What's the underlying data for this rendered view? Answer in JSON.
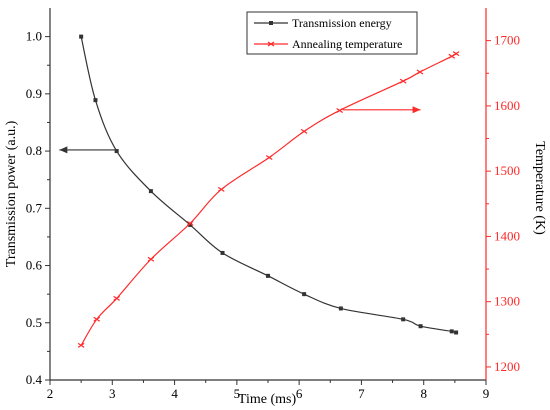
{
  "chart_data": {
    "type": "line",
    "xlabel": "Time (ms)",
    "ylabel": "Transmission power (a.u.)",
    "y2label": "Temperature (K)",
    "xlim": [
      2,
      9
    ],
    "ylim": [
      0.4,
      1.05
    ],
    "y2lim": [
      1180,
      1750
    ],
    "xticks": [
      2,
      3,
      4,
      5,
      6,
      7,
      8,
      9
    ],
    "yticks": [
      0.4,
      0.5,
      0.6,
      0.7,
      0.8,
      0.9,
      1.0
    ],
    "y2ticks": [
      1200,
      1300,
      1400,
      1500,
      1600,
      1700
    ],
    "grid": false,
    "legend_position": "top-right",
    "series": [
      {
        "name": "Transmission energy",
        "axis": "left",
        "color": "#333333",
        "marker": "square",
        "x": [
          2.5,
          2.73,
          3.07,
          3.62,
          4.25,
          4.77,
          5.5,
          6.08,
          6.67,
          7.67,
          7.95,
          8.45,
          8.52
        ],
        "values": [
          1.0,
          0.889,
          0.8,
          0.73,
          0.671,
          0.622,
          0.582,
          0.55,
          0.525,
          0.506,
          0.494,
          0.485,
          0.483
        ]
      },
      {
        "name": "Annealing temperature",
        "axis": "right",
        "color": "#ff2a2a",
        "marker": "x",
        "x": [
          2.5,
          2.75,
          3.07,
          3.62,
          4.25,
          4.75,
          5.52,
          6.08,
          6.65,
          7.67,
          7.94,
          8.45,
          8.52
        ],
        "values": [
          1233,
          1273,
          1305,
          1365,
          1420,
          1472,
          1521,
          1561,
          1593,
          1638,
          1652,
          1676,
          1680
        ]
      }
    ],
    "annotations": [
      {
        "type": "arrow",
        "series": "Transmission energy",
        "direction": "left",
        "from": [
          3.1,
          0.802
        ],
        "to": [
          2.15,
          0.802
        ]
      },
      {
        "type": "arrow",
        "series": "Annealing temperature",
        "direction": "right",
        "from": [
          6.7,
          1594
        ],
        "to": [
          7.95,
          1594
        ]
      }
    ]
  }
}
